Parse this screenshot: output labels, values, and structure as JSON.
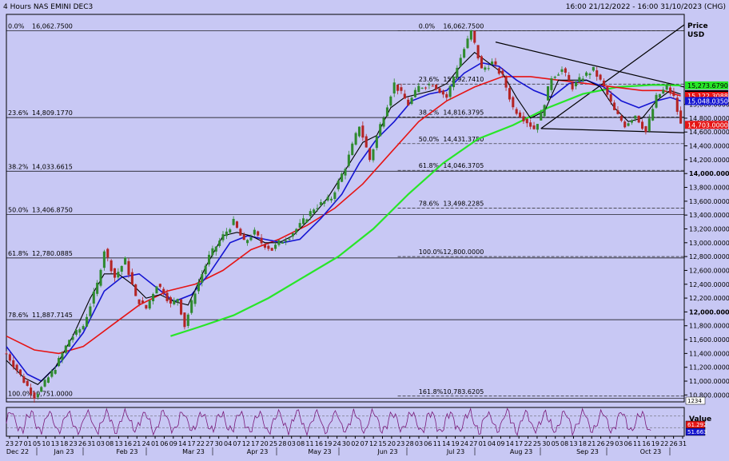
{
  "header": {
    "title": "4 Hours NAS EMINI DEC3",
    "date_range": "16:00 21/12/2022 - 16:00 31/10/2023 (CHG)"
  },
  "colors": {
    "background": "#c8c8f4",
    "candle_up": "#2f8a2f",
    "candle_down": "#b42424",
    "ma_black": "#000000",
    "ma_blue": "#1414d2",
    "ma_red": "#e61414",
    "ma_green": "#28e628",
    "oscillator": "#7a1a7a"
  },
  "chart_data": {
    "type": "candlestick",
    "price_axis": {
      "label": "Price",
      "unit": "USD",
      "ylim": [
        10700,
        16300
      ],
      "ticks": [
        "15,000.0000",
        "14,800.0000",
        "14,600.0000",
        "14,400.0000",
        "14,200.0000",
        "14,000.0000",
        "13,800.0000",
        "13,600.0000",
        "13,400.0000",
        "13,200.0000",
        "13,000.0000",
        "12,800.0000",
        "12,600.0000",
        "12,400.0000",
        "12,200.0000",
        "12,000.0000",
        "11,800.0000",
        "11,600.0000",
        "11,400.0000",
        "11,200.0000",
        "11,000.0000",
        "10,800.0000"
      ],
      "bold_ticks": [
        "14,000.0000",
        "12,000.0000"
      ]
    },
    "price_tags": [
      {
        "label": "15,273.6790",
        "value": 15273.679,
        "bg": "#28e628",
        "fg": "#000000"
      },
      {
        "label": "15,147.2300",
        "value": 15147.23,
        "bg": "#000000",
        "fg": "#ffffff"
      },
      {
        "label": "15,122.3088",
        "value": 15122.3088,
        "bg": "#e61414",
        "fg": "#ffffff"
      },
      {
        "label": "15,048.0350",
        "value": 15048.035,
        "bg": "#1414d2",
        "fg": "#ffffff"
      },
      {
        "label": "14,703.0000",
        "value": 14703.0,
        "bg": "#e61414",
        "fg": "#ffffff"
      }
    ],
    "fib_left": [
      {
        "pct": "0.0%",
        "value": "16,062.7500",
        "level": 16062.75
      },
      {
        "pct": "23.6%",
        "value": "14,809.1770",
        "level": 14809.177
      },
      {
        "pct": "38.2%",
        "value": "14,033.6615",
        "level": 14033.6615
      },
      {
        "pct": "50.0%",
        "value": "13,406.8750",
        "level": 13406.875
      },
      {
        "pct": "61.8%",
        "value": "12,780.0885",
        "level": 12780.0885
      },
      {
        "pct": "78.6%",
        "value": "11,887.7145",
        "level": 11887.7145
      },
      {
        "pct": "100.0%",
        "value": "10,751.0000",
        "level": 10751.0
      }
    ],
    "fib_right": [
      {
        "pct": "0.0%",
        "value": "16,062.7500",
        "level": 16062.75
      },
      {
        "pct": "23.6%",
        "value": "15,292.7410",
        "level": 15292.741
      },
      {
        "pct": "38.2%",
        "value": "14,816.3795",
        "level": 14816.3795
      },
      {
        "pct": "50.0%",
        "value": "14,431.3750",
        "level": 14431.375
      },
      {
        "pct": "61.8%",
        "value": "14,046.3705",
        "level": 14046.3705
      },
      {
        "pct": "78.6%",
        "value": "13,498.2285",
        "level": 13498.2285
      },
      {
        "pct": "100.0%",
        "value": "12,800.0000",
        "level": 12800.0
      },
      {
        "pct": "161.8%",
        "value": "10,783.6205",
        "level": 10783.6205
      }
    ],
    "x_axis": {
      "ticks": [
        "23",
        "27",
        "01",
        "05",
        "10",
        "13",
        "18",
        "23",
        "26",
        "31",
        "03",
        "08",
        "13",
        "16",
        "21",
        "24",
        "01",
        "06",
        "09",
        "14",
        "17",
        "22",
        "27",
        "30",
        "04",
        "07",
        "12",
        "17",
        "20",
        "25",
        "28",
        "03",
        "08",
        "11",
        "16",
        "19",
        "24",
        "30",
        "02",
        "07",
        "12",
        "15",
        "20",
        "23",
        "28",
        "03",
        "06",
        "11",
        "14",
        "19",
        "24",
        "27",
        "01",
        "04",
        "09",
        "14",
        "17",
        "22",
        "25",
        "30",
        "05",
        "08",
        "13",
        "18",
        "21",
        "26",
        "29",
        "03",
        "06",
        "11",
        "16",
        "19",
        "22",
        "26",
        "31"
      ],
      "months": [
        "Dec 22",
        "Jan 23",
        "Feb 23",
        "Mar 23",
        "Apr 23",
        "May 23",
        "Jun 23",
        "Jul 23",
        "Aug 23",
        "Sep 23",
        "Oct 23"
      ]
    },
    "price_path": [
      [
        0,
        11400
      ],
      [
        5,
        11000
      ],
      [
        8,
        10780
      ],
      [
        10,
        10900
      ],
      [
        14,
        11200
      ],
      [
        18,
        11600
      ],
      [
        22,
        11800
      ],
      [
        26,
        12400
      ],
      [
        28,
        12900
      ],
      [
        31,
        12500
      ],
      [
        34,
        12750
      ],
      [
        37,
        12200
      ],
      [
        40,
        12050
      ],
      [
        43,
        12400
      ],
      [
        45,
        12300
      ],
      [
        47,
        12100
      ],
      [
        49,
        12200
      ],
      [
        51,
        11800
      ],
      [
        54,
        12300
      ],
      [
        58,
        12800
      ],
      [
        62,
        13100
      ],
      [
        65,
        13300
      ],
      [
        68,
        13000
      ],
      [
        71,
        13150
      ],
      [
        73,
        13000
      ],
      [
        76,
        12900
      ],
      [
        78,
        13000
      ],
      [
        81,
        13100
      ],
      [
        84,
        13250
      ],
      [
        88,
        13500
      ],
      [
        93,
        13650
      ],
      [
        97,
        14100
      ],
      [
        101,
        14700
      ],
      [
        104,
        14200
      ],
      [
        107,
        14700
      ],
      [
        111,
        15300
      ],
      [
        115,
        15000
      ],
      [
        118,
        15250
      ],
      [
        122,
        15300
      ],
      [
        126,
        15100
      ],
      [
        129,
        15550
      ],
      [
        133,
        16050
      ],
      [
        136,
        15500
      ],
      [
        139,
        15600
      ],
      [
        142,
        15400
      ],
      [
        145,
        14950
      ],
      [
        148,
        14800
      ],
      [
        151,
        14650
      ],
      [
        153,
        14850
      ],
      [
        156,
        15400
      ],
      [
        159,
        15500
      ],
      [
        162,
        15250
      ],
      [
        165,
        15400
      ],
      [
        168,
        15500
      ],
      [
        171,
        15250
      ],
      [
        174,
        14900
      ],
      [
        177,
        14700
      ],
      [
        180,
        14850
      ],
      [
        183,
        14600
      ],
      [
        186,
        15100
      ],
      [
        189,
        15250
      ],
      [
        191,
        15100
      ],
      [
        193,
        14703
      ]
    ],
    "ma_black": [
      [
        0,
        11300
      ],
      [
        5,
        11050
      ],
      [
        9,
        10950
      ],
      [
        14,
        11200
      ],
      [
        19,
        11650
      ],
      [
        24,
        12200
      ],
      [
        28,
        12550
      ],
      [
        32,
        12550
      ],
      [
        36,
        12400
      ],
      [
        40,
        12200
      ],
      [
        44,
        12250
      ],
      [
        48,
        12150
      ],
      [
        52,
        12100
      ],
      [
        57,
        12650
      ],
      [
        62,
        13100
      ],
      [
        66,
        13150
      ],
      [
        70,
        13100
      ],
      [
        74,
        13000
      ],
      [
        78,
        13000
      ],
      [
        82,
        13100
      ],
      [
        87,
        13350
      ],
      [
        92,
        13650
      ],
      [
        97,
        14050
      ],
      [
        102,
        14450
      ],
      [
        106,
        14550
      ],
      [
        110,
        14950
      ],
      [
        114,
        15100
      ],
      [
        118,
        15150
      ],
      [
        122,
        15200
      ],
      [
        126,
        15300
      ],
      [
        130,
        15550
      ],
      [
        134,
        15750
      ],
      [
        138,
        15600
      ],
      [
        142,
        15450
      ],
      [
        146,
        15100
      ],
      [
        150,
        14800
      ],
      [
        154,
        14900
      ],
      [
        158,
        15350
      ],
      [
        162,
        15350
      ],
      [
        166,
        15350
      ],
      [
        170,
        15250
      ],
      [
        174,
        14950
      ],
      [
        178,
        14750
      ],
      [
        182,
        14800
      ],
      [
        186,
        15050
      ],
      [
        190,
        15200
      ],
      [
        193,
        15147
      ]
    ],
    "ma_blue": [
      [
        0,
        11500
      ],
      [
        6,
        11100
      ],
      [
        10,
        11000
      ],
      [
        16,
        11300
      ],
      [
        22,
        11700
      ],
      [
        28,
        12300
      ],
      [
        33,
        12500
      ],
      [
        38,
        12550
      ],
      [
        43,
        12350
      ],
      [
        48,
        12150
      ],
      [
        53,
        12250
      ],
      [
        58,
        12550
      ],
      [
        64,
        13000
      ],
      [
        69,
        13100
      ],
      [
        74,
        13050
      ],
      [
        79,
        13000
      ],
      [
        84,
        13050
      ],
      [
        90,
        13350
      ],
      [
        96,
        13700
      ],
      [
        101,
        14150
      ],
      [
        106,
        14500
      ],
      [
        111,
        14750
      ],
      [
        116,
        15050
      ],
      [
        121,
        15150
      ],
      [
        126,
        15200
      ],
      [
        131,
        15450
      ],
      [
        136,
        15600
      ],
      [
        141,
        15550
      ],
      [
        146,
        15350
      ],
      [
        151,
        15200
      ],
      [
        156,
        15100
      ],
      [
        161,
        15300
      ],
      [
        166,
        15350
      ],
      [
        171,
        15250
      ],
      [
        176,
        15050
      ],
      [
        181,
        14950
      ],
      [
        186,
        15050
      ],
      [
        190,
        15100
      ],
      [
        193,
        15048
      ]
    ],
    "ma_red": [
      [
        0,
        11650
      ],
      [
        8,
        11450
      ],
      [
        15,
        11400
      ],
      [
        22,
        11500
      ],
      [
        30,
        11800
      ],
      [
        38,
        12100
      ],
      [
        46,
        12300
      ],
      [
        54,
        12400
      ],
      [
        62,
        12600
      ],
      [
        70,
        12900
      ],
      [
        78,
        13050
      ],
      [
        86,
        13250
      ],
      [
        94,
        13500
      ],
      [
        102,
        13850
      ],
      [
        110,
        14300
      ],
      [
        118,
        14750
      ],
      [
        126,
        15050
      ],
      [
        134,
        15250
      ],
      [
        142,
        15400
      ],
      [
        150,
        15400
      ],
      [
        158,
        15350
      ],
      [
        166,
        15300
      ],
      [
        174,
        15250
      ],
      [
        182,
        15200
      ],
      [
        188,
        15200
      ],
      [
        193,
        15122
      ]
    ],
    "ma_green": [
      [
        47,
        11650
      ],
      [
        55,
        11780
      ],
      [
        65,
        11950
      ],
      [
        75,
        12200
      ],
      [
        85,
        12500
      ],
      [
        95,
        12800
      ],
      [
        105,
        13200
      ],
      [
        115,
        13700
      ],
      [
        125,
        14150
      ],
      [
        135,
        14500
      ],
      [
        145,
        14700
      ],
      [
        155,
        14950
      ],
      [
        165,
        15150
      ],
      [
        175,
        15250
      ],
      [
        185,
        15280
      ],
      [
        193,
        15274
      ]
    ],
    "oscillator": {
      "label": "Value",
      "tag_values": [
        "1234",
        "61.292",
        "51.663"
      ],
      "ylim": [
        0,
        100
      ]
    },
    "trendlines": [
      {
        "x1": 153,
        "y1": 14650,
        "x2": 205,
        "y2": 16150
      },
      {
        "x1": 140,
        "y1": 15900,
        "x2": 210,
        "y2": 15250
      },
      {
        "x1": 153,
        "y1": 14650,
        "x2": 210,
        "y2": 14590
      }
    ]
  }
}
